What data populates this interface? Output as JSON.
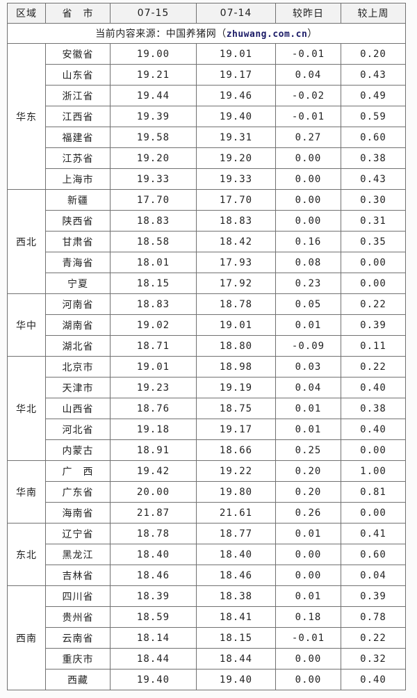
{
  "colors": {
    "up": "#f43c3c",
    "down": "#2fa32f",
    "flat": "#1e1e1e",
    "header-bg": "#f2f2f2",
    "source-domain": "#1a1a66"
  },
  "table": {
    "columns": [
      "区域",
      "省　市",
      "07-15",
      "07-14",
      "较昨日",
      "较上周"
    ],
    "source_note": {
      "prefix": "当前内容来源：中国养猪网（",
      "domain": "zhuwang.com.cn",
      "suffix": "）"
    },
    "regions": [
      {
        "name": "华东",
        "rows": [
          {
            "province": "安徽省",
            "d0715": "19.00",
            "d0714": "19.01",
            "vs_yesterday": "-0.01",
            "vs_week": "0.20"
          },
          {
            "province": "山东省",
            "d0715": "19.21",
            "d0714": "19.17",
            "vs_yesterday": "0.04",
            "vs_week": "0.43"
          },
          {
            "province": "浙江省",
            "d0715": "19.44",
            "d0714": "19.46",
            "vs_yesterday": "-0.02",
            "vs_week": "0.49"
          },
          {
            "province": "江西省",
            "d0715": "19.39",
            "d0714": "19.40",
            "vs_yesterday": "-0.01",
            "vs_week": "0.59"
          },
          {
            "province": "福建省",
            "d0715": "19.58",
            "d0714": "19.31",
            "vs_yesterday": "0.27",
            "vs_week": "0.60"
          },
          {
            "province": "江苏省",
            "d0715": "19.20",
            "d0714": "19.20",
            "vs_yesterday": "0.00",
            "vs_week": "0.38"
          },
          {
            "province": "上海市",
            "d0715": "19.33",
            "d0714": "19.33",
            "vs_yesterday": "0.00",
            "vs_week": "0.43"
          }
        ]
      },
      {
        "name": "西北",
        "rows": [
          {
            "province": "新疆",
            "d0715": "17.70",
            "d0714": "17.70",
            "vs_yesterday": "0.00",
            "vs_week": "0.30"
          },
          {
            "province": "陕西省",
            "d0715": "18.83",
            "d0714": "18.83",
            "vs_yesterday": "0.00",
            "vs_week": "0.31"
          },
          {
            "province": "甘肃省",
            "d0715": "18.58",
            "d0714": "18.42",
            "vs_yesterday": "0.16",
            "vs_week": "0.35"
          },
          {
            "province": "青海省",
            "d0715": "18.01",
            "d0714": "17.93",
            "vs_yesterday": "0.08",
            "vs_week": "0.00"
          },
          {
            "province": "宁夏",
            "d0715": "18.15",
            "d0714": "17.92",
            "vs_yesterday": "0.23",
            "vs_week": "0.00"
          }
        ]
      },
      {
        "name": "华中",
        "rows": [
          {
            "province": "河南省",
            "d0715": "18.83",
            "d0714": "18.78",
            "vs_yesterday": "0.05",
            "vs_week": "0.22"
          },
          {
            "province": "湖南省",
            "d0715": "19.02",
            "d0714": "19.01",
            "vs_yesterday": "0.01",
            "vs_week": "0.39"
          },
          {
            "province": "湖北省",
            "d0715": "18.71",
            "d0714": "18.80",
            "vs_yesterday": "-0.09",
            "vs_week": "0.11"
          }
        ]
      },
      {
        "name": "华北",
        "rows": [
          {
            "province": "北京市",
            "d0715": "19.01",
            "d0714": "18.98",
            "vs_yesterday": "0.03",
            "vs_week": "0.22"
          },
          {
            "province": "天津市",
            "d0715": "19.23",
            "d0714": "19.19",
            "vs_yesterday": "0.04",
            "vs_week": "0.40"
          },
          {
            "province": "山西省",
            "d0715": "18.76",
            "d0714": "18.75",
            "vs_yesterday": "0.01",
            "vs_week": "0.38"
          },
          {
            "province": "河北省",
            "d0715": "19.18",
            "d0714": "19.17",
            "vs_yesterday": "0.01",
            "vs_week": "0.40"
          },
          {
            "province": "内蒙古",
            "d0715": "18.91",
            "d0714": "18.66",
            "vs_yesterday": "0.25",
            "vs_week": "0.00"
          }
        ]
      },
      {
        "name": "华南",
        "rows": [
          {
            "province": "广　西",
            "d0715": "19.42",
            "d0714": "19.22",
            "vs_yesterday": "0.20",
            "vs_week": "1.00"
          },
          {
            "province": "广东省",
            "d0715": "20.00",
            "d0714": "19.80",
            "vs_yesterday": "0.20",
            "vs_week": "0.81"
          },
          {
            "province": "海南省",
            "d0715": "21.87",
            "d0714": "21.61",
            "vs_yesterday": "0.26",
            "vs_week": "0.00"
          }
        ]
      },
      {
        "name": "东北",
        "rows": [
          {
            "province": "辽宁省",
            "d0715": "18.78",
            "d0714": "18.77",
            "vs_yesterday": "0.01",
            "vs_week": "0.41"
          },
          {
            "province": "黑龙江",
            "d0715": "18.40",
            "d0714": "18.40",
            "vs_yesterday": "0.00",
            "vs_week": "0.60"
          },
          {
            "province": "吉林省",
            "d0715": "18.46",
            "d0714": "18.46",
            "vs_yesterday": "0.00",
            "vs_week": "0.04"
          }
        ]
      },
      {
        "name": "西南",
        "rows": [
          {
            "province": "四川省",
            "d0715": "18.39",
            "d0714": "18.38",
            "vs_yesterday": "0.01",
            "vs_week": "0.39"
          },
          {
            "province": "贵州省",
            "d0715": "18.59",
            "d0714": "18.41",
            "vs_yesterday": "0.18",
            "vs_week": "0.78"
          },
          {
            "province": "云南省",
            "d0715": "18.14",
            "d0714": "18.15",
            "vs_yesterday": "-0.01",
            "vs_week": "0.22"
          },
          {
            "province": "重庆市",
            "d0715": "18.44",
            "d0714": "18.44",
            "vs_yesterday": "0.00",
            "vs_week": "0.32"
          },
          {
            "province": "西藏",
            "d0715": "19.40",
            "d0714": "19.40",
            "vs_yesterday": "0.00",
            "vs_week": "0.40"
          }
        ]
      }
    ]
  }
}
